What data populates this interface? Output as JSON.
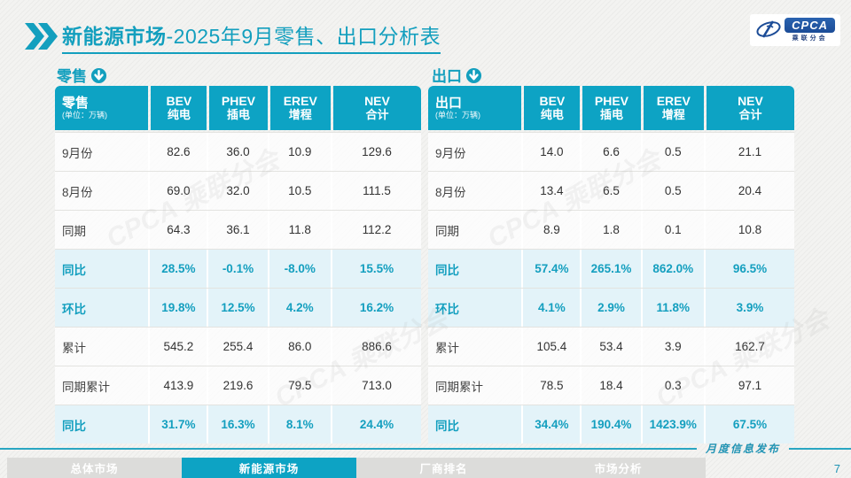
{
  "header": {
    "title_bold": "新能源市场",
    "title_rest": "-2025年9月零售、出口分析表"
  },
  "logo": {
    "brand": "CPCA",
    "brand_sub": "乘联分会"
  },
  "watermark_text": "CPCA 乘联分会",
  "colors": {
    "accent_teal": "#0da3c4",
    "highlight_row": "#e3f3f9",
    "logo_blue": "#1c4c97"
  },
  "columns": [
    {
      "en": "BEV",
      "zh": "纯电"
    },
    {
      "en": "PHEV",
      "zh": "插电"
    },
    {
      "en": "EREV",
      "zh": "增程"
    },
    {
      "en": "NEV",
      "zh": "合计"
    }
  ],
  "tables": [
    {
      "section_label": "零售",
      "corner_label": "零售",
      "unit": "(单位：万辆)",
      "rows": [
        {
          "label": "9月份",
          "values": [
            "82.6",
            "36.0",
            "10.9",
            "129.6"
          ],
          "highlight": false
        },
        {
          "label": "8月份",
          "values": [
            "69.0",
            "32.0",
            "10.5",
            "111.5"
          ],
          "highlight": false
        },
        {
          "label": "同期",
          "values": [
            "64.3",
            "36.1",
            "11.8",
            "112.2"
          ],
          "highlight": false
        },
        {
          "label": "同比",
          "values": [
            "28.5%",
            "-0.1%",
            "-8.0%",
            "15.5%"
          ],
          "highlight": true
        },
        {
          "label": "环比",
          "values": [
            "19.8%",
            "12.5%",
            "4.2%",
            "16.2%"
          ],
          "highlight": true
        },
        {
          "label": "累计",
          "values": [
            "545.2",
            "255.4",
            "86.0",
            "886.6"
          ],
          "highlight": false
        },
        {
          "label": "同期累计",
          "values": [
            "413.9",
            "219.6",
            "79.5",
            "713.0"
          ],
          "highlight": false
        },
        {
          "label": "同比",
          "values": [
            "31.7%",
            "16.3%",
            "8.1%",
            "24.4%"
          ],
          "highlight": true
        }
      ]
    },
    {
      "section_label": "出口",
      "corner_label": "出口",
      "unit": "(单位：万辆)",
      "rows": [
        {
          "label": "9月份",
          "values": [
            "14.0",
            "6.6",
            "0.5",
            "21.1"
          ],
          "highlight": false
        },
        {
          "label": "8月份",
          "values": [
            "13.4",
            "6.5",
            "0.5",
            "20.4"
          ],
          "highlight": false
        },
        {
          "label": "同期",
          "values": [
            "8.9",
            "1.8",
            "0.1",
            "10.8"
          ],
          "highlight": false
        },
        {
          "label": "同比",
          "values": [
            "57.4%",
            "265.1%",
            "862.0%",
            "96.5%"
          ],
          "highlight": true
        },
        {
          "label": "环比",
          "values": [
            "4.1%",
            "2.9%",
            "11.8%",
            "3.9%"
          ],
          "highlight": true
        },
        {
          "label": "累计",
          "values": [
            "105.4",
            "53.4",
            "3.9",
            "162.7"
          ],
          "highlight": false
        },
        {
          "label": "同期累计",
          "values": [
            "78.5",
            "18.4",
            "0.3",
            "97.1"
          ],
          "highlight": false
        },
        {
          "label": "同比",
          "values": [
            "34.4%",
            "190.4%",
            "1423.9%",
            "67.5%"
          ],
          "highlight": true
        }
      ]
    }
  ],
  "footer": {
    "note": "月度信息发布",
    "page_number": "7",
    "tabs": [
      {
        "label": "总体市场",
        "active": false
      },
      {
        "label": "新能源市场",
        "active": true
      },
      {
        "label": "厂商排名",
        "active": false
      },
      {
        "label": "市场分析",
        "active": false
      }
    ]
  }
}
